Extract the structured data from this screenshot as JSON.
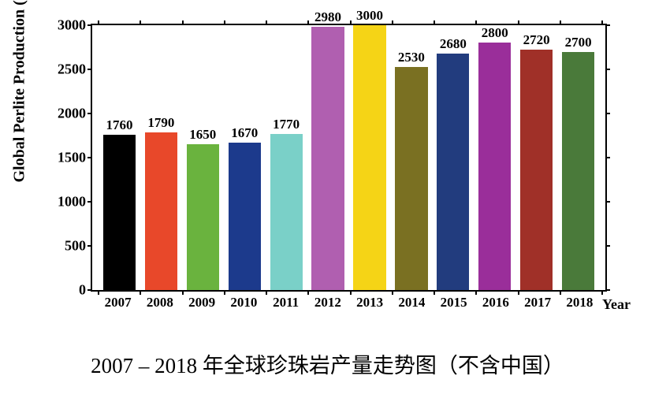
{
  "chart": {
    "type": "bar",
    "ylabel": "Global Perlite Production (Kiloton)",
    "xlabel": "Year",
    "ylim": [
      0,
      3000
    ],
    "ytick_step": 500,
    "yticks": [
      0,
      500,
      1000,
      1500,
      2000,
      2500,
      3000
    ],
    "categories": [
      "2007",
      "2008",
      "2009",
      "2010",
      "2011",
      "2012",
      "2013",
      "2014",
      "2015",
      "2016",
      "2017",
      "2018"
    ],
    "values": [
      1760,
      1790,
      1650,
      1670,
      1770,
      2980,
      3000,
      2530,
      2680,
      2800,
      2720,
      2700
    ],
    "bar_colors": [
      "#000000",
      "#e8482a",
      "#6ab33e",
      "#1c3a8c",
      "#7ad0c8",
      "#b05fb0",
      "#f5d416",
      "#7a7022",
      "#223c7e",
      "#9a2e9a",
      "#a03028",
      "#4a7a3a"
    ],
    "background_color": "#ffffff",
    "border_color": "#000000",
    "label_fontsize": 20,
    "tick_fontsize": 18,
    "value_fontsize": 17,
    "bar_width": 0.78,
    "y_label_fontweight": "bold",
    "x_label_fontweight": "bold"
  },
  "caption": "2007 – 2018 年全球珍珠岩产量走势图（不含中国）"
}
